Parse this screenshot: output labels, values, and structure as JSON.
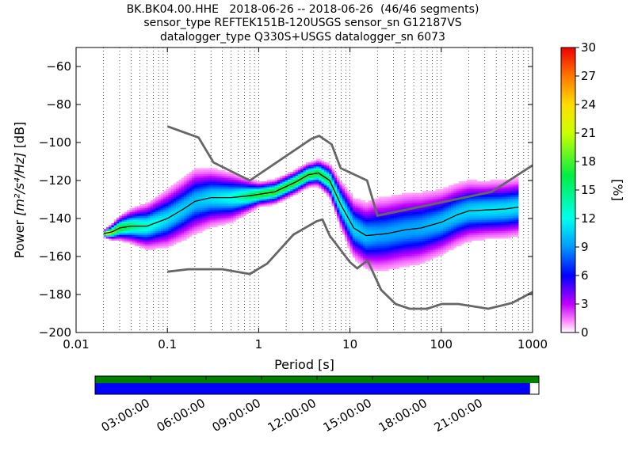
{
  "chart_data": {
    "type": "heatmap",
    "title_lines": [
      "BK.BK04.00.HHE   2018-06-26 -- 2018-06-26  (46/46 segments)",
      "sensor_type REFTEK151B-120USGS sensor_sn G12187VS",
      "datalogger_type Q330S+USGS datalogger_sn 6073"
    ],
    "xlabel": "Period [s]",
    "ylabel_prefix": "Power ",
    "ylabel_unit": "[m²/s⁴/Hz]",
    "ylabel_suffix": " [dB]",
    "xscale": "log",
    "xlim": [
      0.01,
      1000
    ],
    "ylim": [
      -200,
      -50
    ],
    "x_ticks": [
      {
        "v": 0.01,
        "label": "0.01"
      },
      {
        "v": 0.1,
        "label": "0.1"
      },
      {
        "v": 1,
        "label": "1"
      },
      {
        "v": 10,
        "label": "10"
      },
      {
        "v": 100,
        "label": "100"
      },
      {
        "v": 1000,
        "label": "1000"
      }
    ],
    "y_ticks": [
      {
        "v": -60,
        "label": "−60"
      },
      {
        "v": -80,
        "label": "−80"
      },
      {
        "v": -100,
        "label": "−100"
      },
      {
        "v": -120,
        "label": "−120"
      },
      {
        "v": -140,
        "label": "−140"
      },
      {
        "v": -160,
        "label": "−160"
      },
      {
        "v": -180,
        "label": "−180"
      },
      {
        "v": -200,
        "label": "−200"
      }
    ],
    "grid": "vertical dotted",
    "colorbar": {
      "label": "[%]",
      "range": [
        0,
        30
      ],
      "ticks": [
        {
          "v": 0,
          "label": "0"
        },
        {
          "v": 3,
          "label": "3"
        },
        {
          "v": 6,
          "label": "6"
        },
        {
          "v": 9,
          "label": "9"
        },
        {
          "v": 12,
          "label": "12"
        },
        {
          "v": 15,
          "label": "15"
        },
        {
          "v": 18,
          "label": "18"
        },
        {
          "v": 21,
          "label": "21"
        },
        {
          "v": 24,
          "label": "24"
        },
        {
          "v": 27,
          "label": "27"
        },
        {
          "v": 30,
          "label": "30"
        }
      ]
    },
    "noise_model_high": [
      [
        0.1,
        -91.5
      ],
      [
        0.22,
        -97.4
      ],
      [
        0.32,
        -110.5
      ],
      [
        0.8,
        -120
      ],
      [
        3.8,
        -98
      ],
      [
        4.6,
        -96.5
      ],
      [
        6.3,
        -101
      ],
      [
        7.9,
        -113.5
      ],
      [
        15.4,
        -120
      ],
      [
        20,
        -138.5
      ],
      [
        354.8,
        -126
      ],
      [
        1000,
        -112
      ]
    ],
    "noise_model_low": [
      [
        0.1,
        -168
      ],
      [
        0.17,
        -166.7
      ],
      [
        0.4,
        -166.7
      ],
      [
        0.8,
        -169.2
      ],
      [
        1.24,
        -163.7
      ],
      [
        2.4,
        -148.5
      ],
      [
        4.3,
        -141.5
      ],
      [
        5,
        -140.5
      ],
      [
        6,
        -149
      ],
      [
        10,
        -163
      ],
      [
        12,
        -166.2
      ],
      [
        15.6,
        -162.1
      ],
      [
        21.9,
        -177.5
      ],
      [
        31.6,
        -185
      ],
      [
        45,
        -187.5
      ],
      [
        70,
        -187.5
      ],
      [
        101,
        -185
      ],
      [
        154,
        -185
      ],
      [
        328,
        -187.5
      ],
      [
        600,
        -184.4
      ],
      [
        1000,
        -178.7
      ]
    ],
    "mode_curve": [
      [
        0.02,
        -148
      ],
      [
        0.025,
        -147
      ],
      [
        0.03,
        -145
      ],
      [
        0.04,
        -144
      ],
      [
        0.06,
        -144
      ],
      [
        0.1,
        -140
      ],
      [
        0.15,
        -135
      ],
      [
        0.2,
        -131
      ],
      [
        0.3,
        -129
      ],
      [
        0.5,
        -129
      ],
      [
        0.8,
        -128
      ],
      [
        1.5,
        -126
      ],
      [
        2.5,
        -121
      ],
      [
        3.5,
        -117
      ],
      [
        4.5,
        -116
      ],
      [
        6,
        -120
      ],
      [
        8,
        -133
      ],
      [
        11,
        -145
      ],
      [
        15,
        -149
      ],
      [
        25,
        -148
      ],
      [
        40,
        -146
      ],
      [
        60,
        -145
      ],
      [
        100,
        -142
      ],
      [
        150,
        -138
      ],
      [
        200,
        -136
      ],
      [
        500,
        -135
      ],
      [
        700,
        -134
      ]
    ],
    "spread_curve": [
      [
        0.02,
        0
      ],
      [
        0.03,
        2
      ],
      [
        0.05,
        4
      ],
      [
        0.1,
        6
      ],
      [
        0.2,
        7
      ],
      [
        0.5,
        5
      ],
      [
        1,
        2
      ],
      [
        2,
        2
      ],
      [
        4,
        2
      ],
      [
        6,
        3
      ],
      [
        10,
        6
      ],
      [
        20,
        8
      ],
      [
        50,
        8
      ],
      [
        100,
        7
      ],
      [
        300,
        6
      ],
      [
        700,
        6
      ]
    ],
    "segments_shown": "46/46",
    "time_axis_labels": [
      "03:00:00",
      "06:00:00",
      "09:00:00",
      "12:00:00",
      "15:00:00",
      "18:00:00",
      "21:00:00"
    ],
    "data_coverage_fraction": 0.98,
    "colors": {
      "noise_model": "#666666",
      "mode_line": "#000000",
      "coverage_top": "#008000",
      "coverage_main": "#0000ff"
    }
  }
}
